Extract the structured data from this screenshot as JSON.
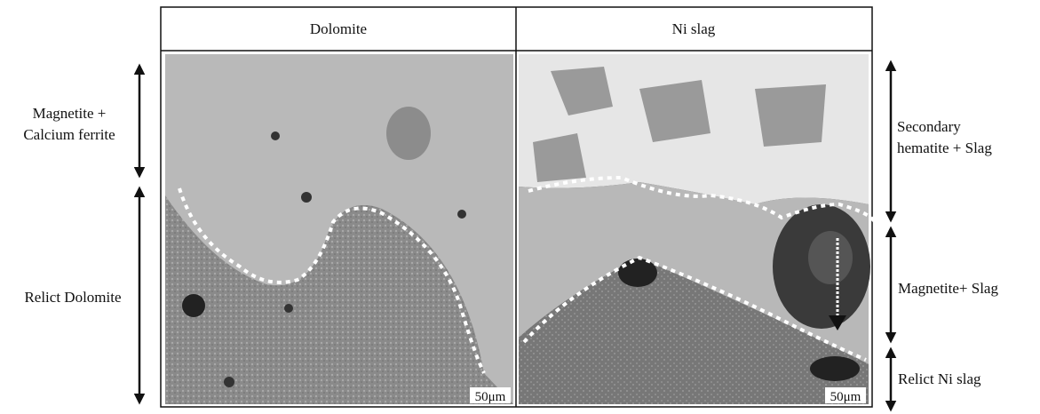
{
  "header": {
    "columns": [
      "Dolomite",
      "Ni slag"
    ]
  },
  "left_labels": [
    {
      "lines": [
        "Magnetite +",
        "Calcium ferrite"
      ]
    },
    {
      "lines": [
        "Relict Dolomite"
      ]
    }
  ],
  "right_labels": [
    {
      "lines": [
        "Secondary",
        "hematite + Slag"
      ]
    },
    {
      "lines": [
        "Magnetite+ Slag"
      ]
    },
    {
      "lines": [
        "Relict Ni slag"
      ]
    }
  ],
  "panels": [
    {
      "scale_bar": "50μm"
    },
    {
      "scale_bar": "50μm"
    }
  ]
}
